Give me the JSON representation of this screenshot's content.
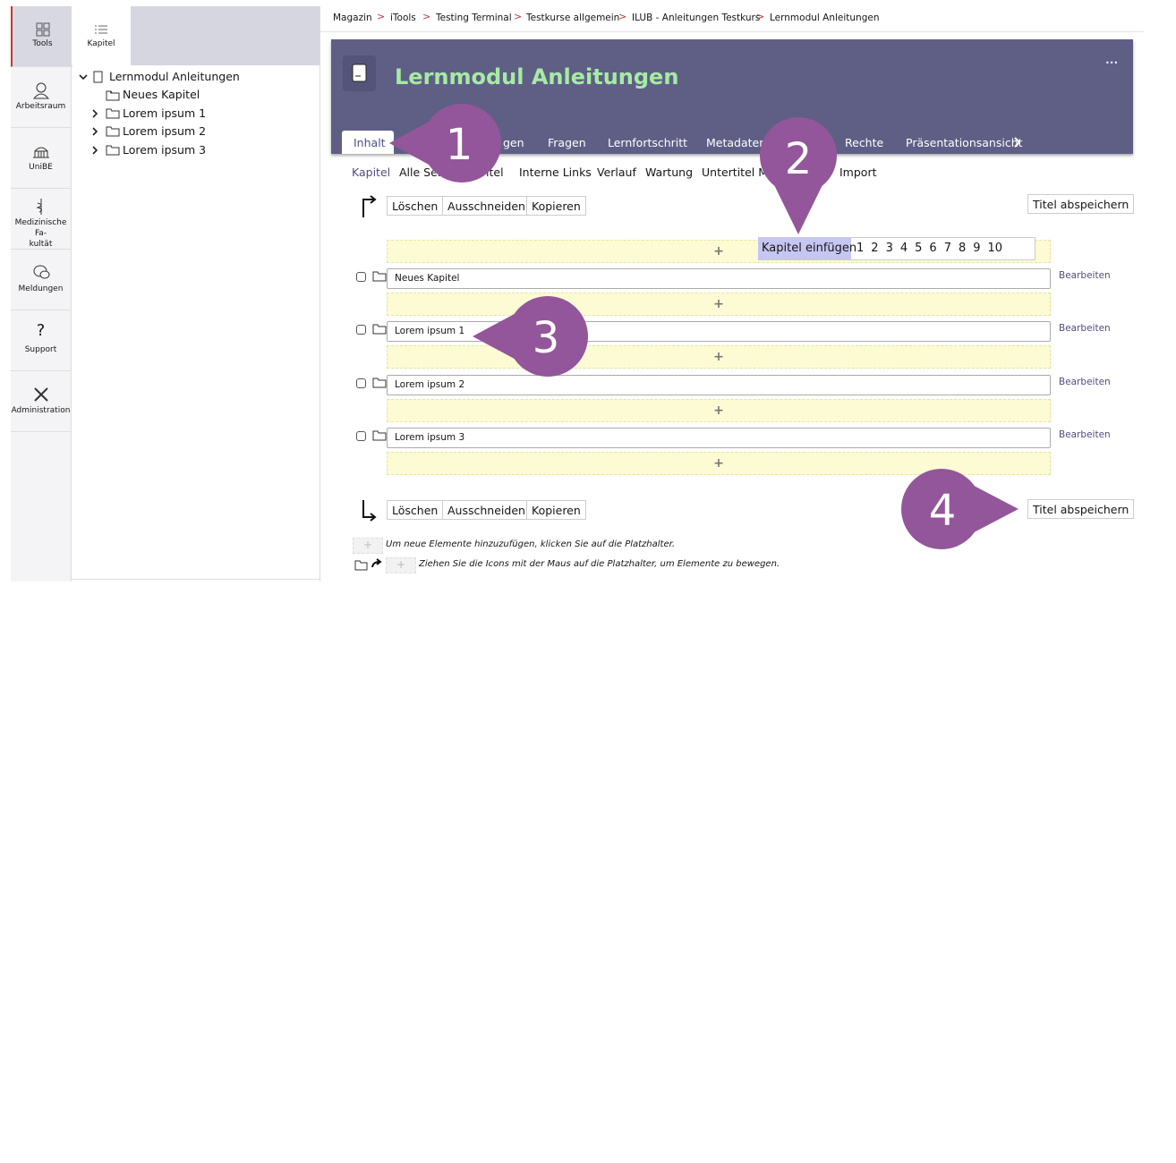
{
  "sidebar": {
    "items": [
      "Tools",
      "Arbeitsraum",
      "UniBE",
      "Medizinische Fa-\nkultät",
      "Meldungen",
      "Support",
      "Administration"
    ]
  },
  "slate": {
    "tab": "Kapitel",
    "tree": {
      "root": "Lernmodul Anleitungen",
      "children": [
        "Neues Kapitel",
        "Lorem ipsum 1",
        "Lorem ipsum 2",
        "Lorem ipsum 3"
      ]
    }
  },
  "breadcrumbs": [
    "Magazin",
    "iTools",
    "Testing Terminal",
    "Testkurse allgemein",
    "ILUB - Anleitungen Testkurs",
    "Lernmodul Anleitungen"
  ],
  "header": {
    "title": "Lernmodul Anleitungen",
    "menu": "•••"
  },
  "tabs": [
    "Inhalt",
    "gen",
    "Fragen",
    "Lernfortschritt",
    "Metadaten",
    "Rechte",
    "Präsentationsansicht"
  ],
  "subtabs": [
    "Kapitel",
    "Alle Seite",
    "itel",
    "Interne Links",
    "Verlauf",
    "Wartung",
    "Untertitel Me",
    "Import"
  ],
  "actions": {
    "delete": "Löschen",
    "cut": "Ausschneiden",
    "copy": "Kopieren",
    "save": "Titel abspeichern"
  },
  "insert_menu": {
    "label": "Kapitel einfügen",
    "counts": [
      1,
      2,
      3,
      4,
      5,
      6,
      7,
      8,
      9,
      10
    ]
  },
  "rows": [
    {
      "title": "Neues Kapitel",
      "edit": "Bearbeiten"
    },
    {
      "title": "Lorem ipsum 1",
      "edit": "Bearbeiten"
    },
    {
      "title": "Lorem ipsum 2",
      "edit": "Bearbeiten"
    },
    {
      "title": "Lorem ipsum 3",
      "edit": "Bearbeiten"
    }
  ],
  "hints": [
    "Um neue Elemente hinzuzufügen, klicken Sie auf die Platzhalter.",
    "Ziehen Sie die Icons mit der Maus auf die Platzhalter, um Elemente zu bewegen."
  ],
  "callouts": [
    "1",
    "2",
    "3",
    "4"
  ]
}
